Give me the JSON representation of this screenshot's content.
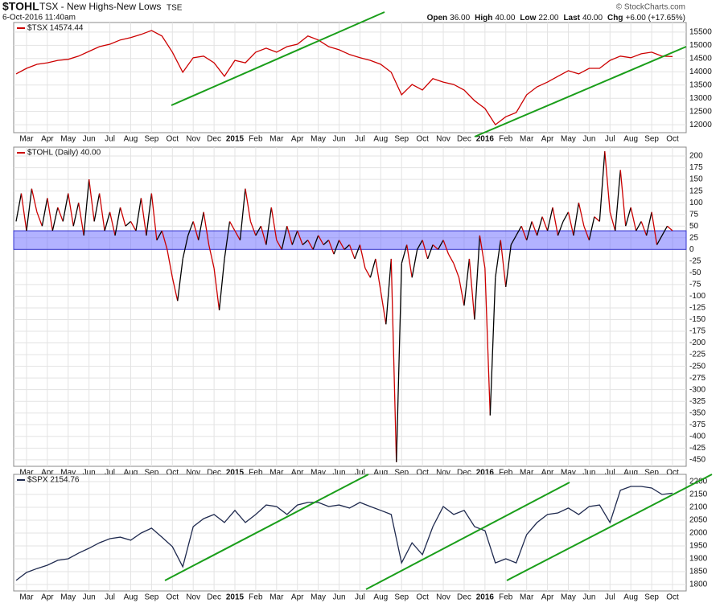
{
  "header": {
    "symbol": "$TOHL",
    "name": "TSX - New Highs-New Lows",
    "exchange": "TSE",
    "date": "6-Oct-2016 11:40am",
    "brand": "© StockCharts.com",
    "quote": [
      {
        "label": "Open",
        "value": "36.00"
      },
      {
        "label": "High",
        "value": "40.00"
      },
      {
        "label": "Low",
        "value": "22.00"
      },
      {
        "label": "Last",
        "value": "40.00"
      },
      {
        "label": "Chg",
        "value": "+6.00 (+17.65%)"
      }
    ]
  },
  "chart_data": [
    {
      "type": "line",
      "categories": [
        null,
        "Mar",
        null,
        "Apr",
        null,
        "May",
        null,
        "Jun",
        null,
        "Jul",
        null,
        "Aug",
        null,
        "Sep",
        null,
        "Oct",
        null,
        "Nov",
        null,
        "Dec",
        null,
        "2015",
        null,
        "Feb",
        null,
        "Mar",
        null,
        "Apr",
        null,
        "May",
        null,
        "Jun",
        null,
        "Jul",
        null,
        "Aug",
        null,
        "Sep",
        null,
        "Oct",
        null,
        "Nov",
        null,
        "Dec",
        null,
        "2016",
        null,
        "Feb",
        null,
        "Mar",
        null,
        "Apr",
        null,
        "May",
        null,
        "Jun",
        null,
        "Jul",
        null,
        "Aug",
        null,
        "Sep",
        null,
        "Oct"
      ],
      "series": [
        {
          "name": "$TSX 14574.44",
          "color": "#cc0000",
          "values": [
            13920,
            14130,
            14280,
            14340,
            14430,
            14470,
            14590,
            14770,
            14950,
            15040,
            15200,
            15290,
            15410,
            15560,
            15350,
            14740,
            13980,
            14530,
            14590,
            14340,
            13830,
            14430,
            14340,
            14740,
            14890,
            14740,
            14950,
            15040,
            15350,
            15200,
            14950,
            14830,
            14650,
            14530,
            14430,
            14280,
            13980,
            13130,
            13520,
            13310,
            13740,
            13610,
            13520,
            13310,
            12910,
            12610,
            12000,
            12300,
            12460,
            13130,
            13430,
            13610,
            13830,
            14040,
            13920,
            14130,
            14130,
            14430,
            14590,
            14530,
            14680,
            14740,
            14590,
            14574
          ]
        }
      ],
      "ylim": [
        11700,
        15860
      ],
      "yticks": [
        12000,
        12500,
        13000,
        13500,
        14000,
        14500,
        15000,
        15500
      ],
      "grid": true
    },
    {
      "type": "updown-line",
      "categories": [
        null,
        null,
        "Mar",
        null,
        null,
        null,
        "Apr",
        null,
        null,
        null,
        "May",
        null,
        null,
        null,
        "Jun",
        null,
        null,
        null,
        "Jul",
        null,
        null,
        null,
        "Aug",
        null,
        null,
        null,
        "Sep",
        null,
        null,
        null,
        "Oct",
        null,
        null,
        null,
        "Nov",
        null,
        null,
        null,
        "Dec",
        null,
        null,
        null,
        "2015",
        null,
        null,
        null,
        "Feb",
        null,
        null,
        null,
        "Mar",
        null,
        null,
        null,
        "Apr",
        null,
        null,
        null,
        "May",
        null,
        null,
        null,
        "Jun",
        null,
        null,
        null,
        "Jul",
        null,
        null,
        null,
        "Aug",
        null,
        null,
        null,
        "Sep",
        null,
        null,
        null,
        "Oct",
        null,
        null,
        null,
        "Nov",
        null,
        null,
        null,
        "Dec",
        null,
        null,
        null,
        "2016",
        null,
        null,
        null,
        "Feb",
        null,
        null,
        null,
        "Mar",
        null,
        null,
        null,
        "Apr",
        null,
        null,
        null,
        "May",
        null,
        null,
        null,
        "Jun",
        null,
        null,
        null,
        "Jul",
        null,
        null,
        null,
        "Aug",
        null,
        null,
        null,
        "Sep",
        null,
        null,
        null,
        "Oct"
      ],
      "series": [
        {
          "name": "$TOHL (Daily) 40.00",
          "up_color": "#000000",
          "down_color": "#cc0000",
          "values": [
            60,
            120,
            40,
            130,
            80,
            50,
            110,
            40,
            90,
            60,
            120,
            50,
            100,
            30,
            150,
            60,
            120,
            40,
            80,
            30,
            90,
            50,
            60,
            40,
            110,
            30,
            120,
            20,
            40,
            0,
            -60,
            -110,
            -20,
            30,
            60,
            20,
            80,
            10,
            -40,
            -130,
            -20,
            60,
            40,
            20,
            130,
            60,
            30,
            50,
            10,
            90,
            20,
            0,
            50,
            10,
            40,
            10,
            20,
            0,
            30,
            10,
            20,
            -10,
            20,
            0,
            10,
            -20,
            10,
            -40,
            -60,
            -20,
            -90,
            -160,
            -20,
            -455,
            -30,
            10,
            -60,
            0,
            20,
            -20,
            10,
            0,
            20,
            -10,
            -30,
            -60,
            -120,
            -20,
            -150,
            30,
            -40,
            -355,
            -60,
            20,
            -80,
            10,
            30,
            50,
            20,
            60,
            30,
            70,
            40,
            90,
            30,
            60,
            80,
            30,
            100,
            50,
            20,
            70,
            60,
            210,
            80,
            40,
            170,
            50,
            90,
            40,
            60,
            30,
            80,
            10,
            30,
            50,
            40
          ]
        }
      ],
      "band": {
        "range": [
          0,
          40
        ],
        "color": "#6666ff"
      },
      "ylim": [
        -464,
        219
      ],
      "yticks": [
        200,
        175,
        150,
        125,
        100,
        75,
        50,
        25,
        0,
        -25,
        -50,
        -75,
        -100,
        -125,
        -150,
        -175,
        -200,
        -225,
        -250,
        -275,
        -300,
        -325,
        -350,
        -375,
        -400,
        -425,
        -450
      ],
      "grid": true
    },
    {
      "type": "line",
      "categories": [
        null,
        "Mar",
        null,
        "Apr",
        null,
        "May",
        null,
        "Jun",
        null,
        "Jul",
        null,
        "Aug",
        null,
        "Sep",
        null,
        "Oct",
        null,
        "Nov",
        null,
        "Dec",
        null,
        "2015",
        null,
        "Feb",
        null,
        "Mar",
        null,
        "Apr",
        null,
        "May",
        null,
        "Jun",
        null,
        "Jul",
        null,
        "Aug",
        null,
        "Sep",
        null,
        "Oct",
        null,
        "Nov",
        null,
        "Dec",
        null,
        "2016",
        null,
        "Feb",
        null,
        "Mar",
        null,
        "Apr",
        null,
        "May",
        null,
        "Jun",
        null,
        "Jul",
        null,
        "Aug",
        null,
        "Sep",
        null,
        "Oct"
      ],
      "series": [
        {
          "name": "$SPX 2154.76",
          "color": "#1f2a4f",
          "values": [
            1816,
            1847,
            1862,
            1875,
            1894,
            1900,
            1922,
            1941,
            1962,
            1978,
            1984,
            1972,
            2000,
            2019,
            1984,
            1947,
            1869,
            2025,
            2056,
            2072,
            2041,
            2088,
            2041,
            2072,
            2109,
            2103,
            2072,
            2109,
            2119,
            2119,
            2103,
            2109,
            2097,
            2119,
            2103,
            2088,
            2072,
            1884,
            1962,
            1916,
            2025,
            2103,
            2072,
            2088,
            2025,
            2009,
            1884,
            1900,
            1884,
            1994,
            2041,
            2072,
            2078,
            2097,
            2072,
            2103,
            2109,
            2041,
            2166,
            2181,
            2181,
            2175,
            2150,
            2155
          ]
        }
      ],
      "ylim": [
        1775,
        2228
      ],
      "yticks": [
        1800,
        1850,
        1900,
        1950,
        2000,
        2050,
        2100,
        2150,
        2200
      ],
      "grid": true
    }
  ]
}
